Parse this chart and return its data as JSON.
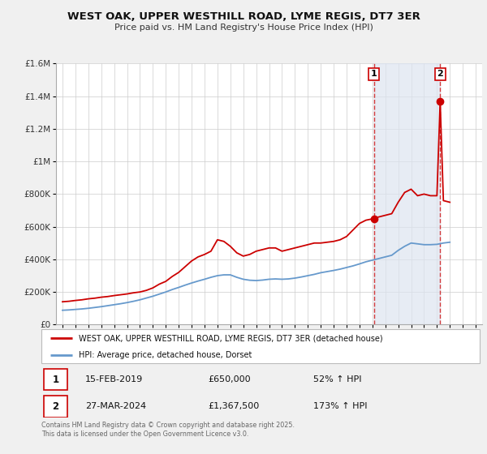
{
  "title": "WEST OAK, UPPER WESTHILL ROAD, LYME REGIS, DT7 3ER",
  "subtitle": "Price paid vs. HM Land Registry's House Price Index (HPI)",
  "bg_color": "#f0f0f0",
  "plot_bg_color": "#ffffff",
  "ylim": [
    0,
    1600000
  ],
  "xlim": [
    1994.5,
    2027.5
  ],
  "yticks": [
    0,
    200000,
    400000,
    600000,
    800000,
    1000000,
    1200000,
    1400000,
    1600000
  ],
  "ytick_labels": [
    "£0",
    "£200K",
    "£400K",
    "£600K",
    "£800K",
    "£1M",
    "£1.2M",
    "£1.4M",
    "£1.6M"
  ],
  "xticks": [
    1995,
    1996,
    1997,
    1998,
    1999,
    2000,
    2001,
    2002,
    2003,
    2004,
    2005,
    2006,
    2007,
    2008,
    2009,
    2010,
    2011,
    2012,
    2013,
    2014,
    2015,
    2016,
    2017,
    2018,
    2019,
    2020,
    2021,
    2022,
    2023,
    2024,
    2025,
    2026,
    2027
  ],
  "red_line_color": "#cc0000",
  "blue_line_color": "#6699cc",
  "marker1_x": 2019.125,
  "marker1_y": 650000,
  "marker2_x": 2024.25,
  "marker2_y": 1367500,
  "vline1_x": 2019.125,
  "vline2_x": 2024.25,
  "shaded_region": [
    2019.125,
    2024.25
  ],
  "legend_red_label": "WEST OAK, UPPER WESTHILL ROAD, LYME REGIS, DT7 3ER (detached house)",
  "legend_blue_label": "HPI: Average price, detached house, Dorset",
  "note1_date": "15-FEB-2019",
  "note1_price": "£650,000",
  "note1_hpi": "52% ↑ HPI",
  "note2_date": "27-MAR-2024",
  "note2_price": "£1,367,500",
  "note2_hpi": "173% ↑ HPI",
  "footer": "Contains HM Land Registry data © Crown copyright and database right 2025.\nThis data is licensed under the Open Government Licence v3.0.",
  "red_x": [
    1995.0,
    1995.5,
    1996.0,
    1996.5,
    1997.0,
    1997.5,
    1998.0,
    1998.5,
    1999.0,
    1999.5,
    2000.0,
    2000.5,
    2001.0,
    2001.5,
    2002.0,
    2002.5,
    2003.0,
    2003.5,
    2004.0,
    2004.5,
    2005.0,
    2005.5,
    2006.0,
    2006.5,
    2007.0,
    2007.5,
    2008.0,
    2008.5,
    2009.0,
    2009.5,
    2010.0,
    2010.5,
    2011.0,
    2011.5,
    2012.0,
    2012.5,
    2013.0,
    2013.5,
    2014.0,
    2014.5,
    2015.0,
    2015.5,
    2016.0,
    2016.5,
    2017.0,
    2017.5,
    2018.0,
    2018.5,
    2019.125,
    2019.5,
    2020.0,
    2020.5,
    2021.0,
    2021.5,
    2022.0,
    2022.5,
    2023.0,
    2023.5,
    2024.0,
    2024.25,
    2024.5,
    2025.0
  ],
  "red_y": [
    140000,
    143000,
    148000,
    152000,
    158000,
    162000,
    168000,
    172000,
    178000,
    183000,
    188000,
    195000,
    200000,
    210000,
    225000,
    248000,
    265000,
    295000,
    320000,
    355000,
    390000,
    415000,
    430000,
    450000,
    520000,
    510000,
    480000,
    440000,
    420000,
    430000,
    450000,
    460000,
    470000,
    470000,
    450000,
    460000,
    470000,
    480000,
    490000,
    500000,
    500000,
    505000,
    510000,
    520000,
    540000,
    580000,
    620000,
    640000,
    650000,
    660000,
    670000,
    680000,
    750000,
    810000,
    830000,
    790000,
    800000,
    790000,
    790000,
    1367500,
    760000,
    750000
  ],
  "blue_x": [
    1995.0,
    1995.5,
    1996.0,
    1996.5,
    1997.0,
    1997.5,
    1998.0,
    1998.5,
    1999.0,
    1999.5,
    2000.0,
    2000.5,
    2001.0,
    2001.5,
    2002.0,
    2002.5,
    2003.0,
    2003.5,
    2004.0,
    2004.5,
    2005.0,
    2005.5,
    2006.0,
    2006.5,
    2007.0,
    2007.5,
    2008.0,
    2008.5,
    2009.0,
    2009.5,
    2010.0,
    2010.5,
    2011.0,
    2011.5,
    2012.0,
    2012.5,
    2013.0,
    2013.5,
    2014.0,
    2014.5,
    2015.0,
    2015.5,
    2016.0,
    2016.5,
    2017.0,
    2017.5,
    2018.0,
    2018.5,
    2019.0,
    2019.5,
    2020.0,
    2020.5,
    2021.0,
    2021.5,
    2022.0,
    2022.5,
    2023.0,
    2023.5,
    2024.0,
    2024.5,
    2025.0
  ],
  "blue_y": [
    88000,
    90000,
    93000,
    96000,
    100000,
    105000,
    110000,
    116000,
    122000,
    128000,
    135000,
    143000,
    152000,
    163000,
    174000,
    187000,
    200000,
    215000,
    228000,
    242000,
    255000,
    267000,
    278000,
    290000,
    300000,
    305000,
    305000,
    290000,
    278000,
    272000,
    270000,
    273000,
    278000,
    280000,
    278000,
    280000,
    285000,
    292000,
    300000,
    308000,
    318000,
    325000,
    332000,
    340000,
    350000,
    360000,
    372000,
    385000,
    395000,
    405000,
    415000,
    425000,
    455000,
    480000,
    500000,
    495000,
    490000,
    490000,
    492000,
    500000,
    505000
  ]
}
